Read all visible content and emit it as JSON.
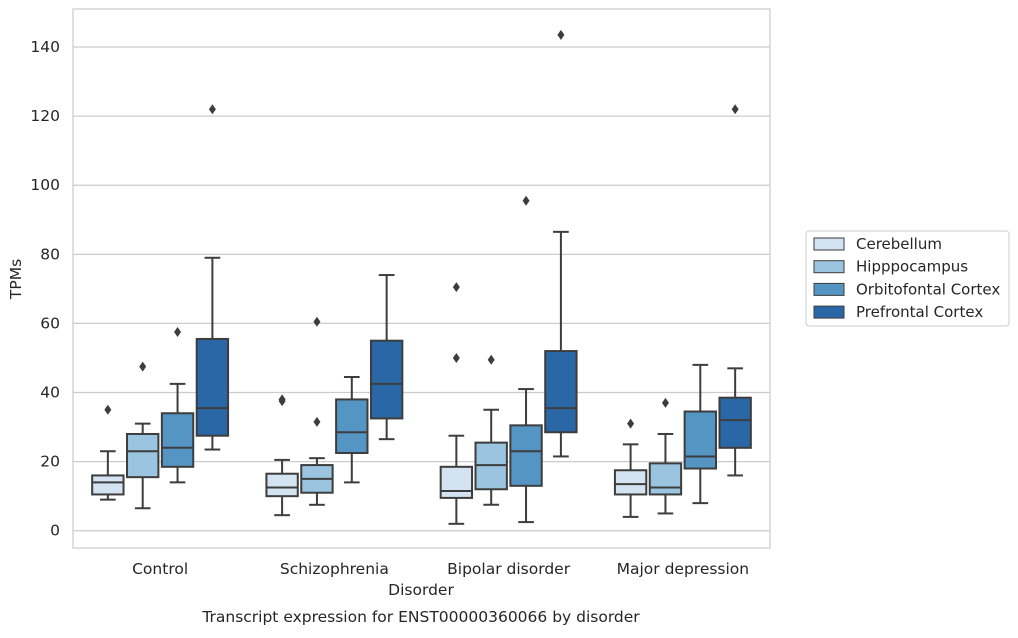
{
  "chart_data": {
    "type": "box",
    "caption": "Transcript expression for ENST00000360066 by disorder",
    "xlabel": "Disorder",
    "ylabel": "TPMs",
    "ylim": [
      -5,
      151
    ],
    "yticks": [
      0,
      20,
      40,
      60,
      80,
      100,
      120,
      140
    ],
    "grid": "horizontal",
    "legend_position": "right",
    "categories": [
      "Control",
      "Schizophrenia",
      "Bipolar disorder",
      "Major depression"
    ],
    "series": [
      {
        "name": "Cerebellum",
        "color": "#d4e3f1",
        "boxes": [
          {
            "whisker_low": 9,
            "q1": 10.5,
            "median": 14,
            "q3": 16,
            "whisker_high": 23,
            "outliers": [
              35
            ]
          },
          {
            "whisker_low": 4.5,
            "q1": 10,
            "median": 12.5,
            "q3": 16.5,
            "whisker_high": 20.5,
            "outliers": [
              37.5,
              38
            ]
          },
          {
            "whisker_low": 2,
            "q1": 9.5,
            "median": 11.5,
            "q3": 18.5,
            "whisker_high": 27.5,
            "outliers": [
              50,
              70.5
            ]
          },
          {
            "whisker_low": 4,
            "q1": 10.5,
            "median": 13.5,
            "q3": 17.5,
            "whisker_high": 25,
            "outliers": [
              31
            ]
          }
        ]
      },
      {
        "name": "Hipppocampus",
        "color": "#9ac4df",
        "boxes": [
          {
            "whisker_low": 6.5,
            "q1": 15.5,
            "median": 23,
            "q3": 28,
            "whisker_high": 31,
            "outliers": [
              47.5
            ]
          },
          {
            "whisker_low": 7.5,
            "q1": 11,
            "median": 15,
            "q3": 19,
            "whisker_high": 21,
            "outliers": [
              31.5,
              60.5
            ]
          },
          {
            "whisker_low": 7.5,
            "q1": 12,
            "median": 19,
            "q3": 25.5,
            "whisker_high": 35,
            "outliers": [
              49.5
            ]
          },
          {
            "whisker_low": 5,
            "q1": 10.5,
            "median": 12.5,
            "q3": 19.5,
            "whisker_high": 28,
            "outliers": [
              37
            ]
          }
        ]
      },
      {
        "name": "Orbitofontal Cortex",
        "color": "#5495c4",
        "boxes": [
          {
            "whisker_low": 14,
            "q1": 18.5,
            "median": 24,
            "q3": 34,
            "whisker_high": 42.5,
            "outliers": [
              57.5
            ]
          },
          {
            "whisker_low": 14,
            "q1": 22.5,
            "median": 28.5,
            "q3": 38,
            "whisker_high": 44.5,
            "outliers": []
          },
          {
            "whisker_low": 2.5,
            "q1": 13,
            "median": 23,
            "q3": 30.5,
            "whisker_high": 41,
            "outliers": [
              95.5
            ]
          },
          {
            "whisker_low": 8,
            "q1": 18,
            "median": 21.5,
            "q3": 34.5,
            "whisker_high": 48,
            "outliers": []
          }
        ]
      },
      {
        "name": "Prefrontal Cortex",
        "color": "#2a67a6",
        "boxes": [
          {
            "whisker_low": 23.5,
            "q1": 27.5,
            "median": 35.5,
            "q3": 55.5,
            "whisker_high": 79,
            "outliers": [
              122
            ]
          },
          {
            "whisker_low": 26.5,
            "q1": 32.5,
            "median": 42.5,
            "q3": 55,
            "whisker_high": 74,
            "outliers": []
          },
          {
            "whisker_low": 21.5,
            "q1": 28.5,
            "median": 35.5,
            "q3": 52,
            "whisker_high": 86.5,
            "outliers": [
              143.5
            ]
          },
          {
            "whisker_low": 16,
            "q1": 24,
            "median": 32,
            "q3": 38.5,
            "whisker_high": 47,
            "outliers": [
              122
            ]
          }
        ]
      }
    ]
  }
}
